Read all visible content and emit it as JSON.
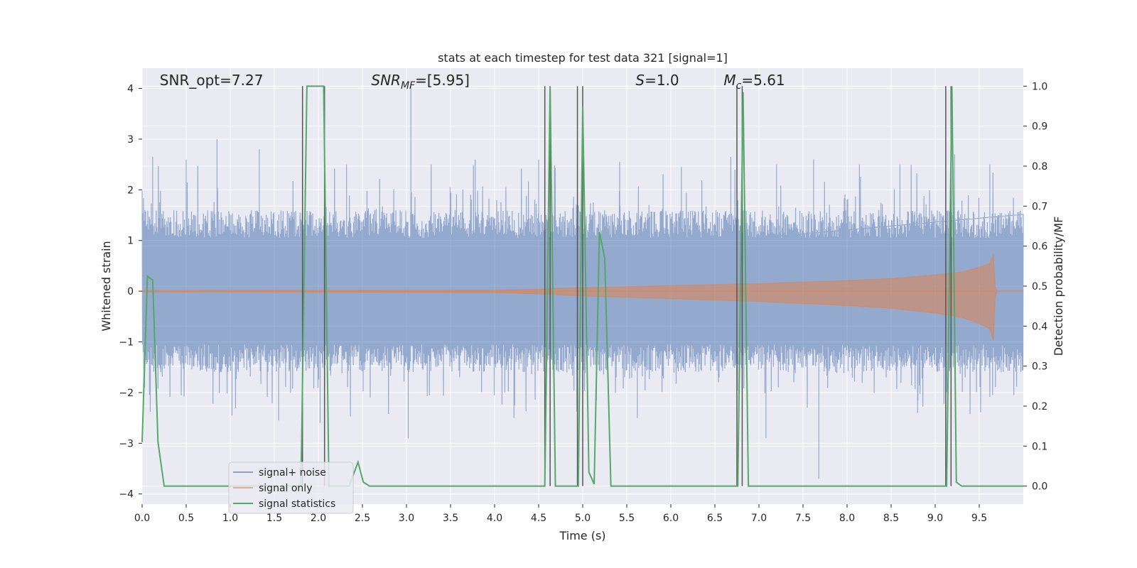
{
  "chart_data": {
    "type": "line",
    "title": "stats at each timestep for test data 321 [signal=1]",
    "xlabel": "Time (s)",
    "ylabel": "Whitened strain",
    "y2label": "Detection probability/MF",
    "xlim": [
      0.0,
      10.0
    ],
    "ylim": [
      -4.2,
      4.4
    ],
    "y2lim": [
      -0.045,
      1.045
    ],
    "x_ticks": [
      0.0,
      0.5,
      1.0,
      1.5,
      2.0,
      2.5,
      3.0,
      3.5,
      4.0,
      4.5,
      5.0,
      5.5,
      6.0,
      6.5,
      7.0,
      7.5,
      8.0,
      8.5,
      9.0,
      9.5
    ],
    "y_ticks": [
      -4,
      -3,
      -2,
      -1,
      0,
      1,
      2,
      3,
      4
    ],
    "y2_ticks": [
      0.0,
      0.1,
      0.2,
      0.3,
      0.4,
      0.5,
      0.6,
      0.7,
      0.8,
      0.9,
      1.0
    ],
    "grid": true,
    "annotations": [
      {
        "id": "snr-opt",
        "text": "SNR_opt=7.27",
        "x": 0.2,
        "y": 4.15
      },
      {
        "id": "snr-mf",
        "base": "SNR",
        "sub": "MF",
        "rest": "=[5.95]",
        "x": 2.6,
        "y": 4.15
      },
      {
        "id": "s-value",
        "base": "S",
        "sub": "",
        "rest": "=1.0",
        "x": 5.6,
        "y": 4.15
      },
      {
        "id": "mc-value",
        "base": "M",
        "sub": "c",
        "rest": "=5.61",
        "x": 6.6,
        "y": 4.15
      }
    ],
    "legend": {
      "position": "lower-left",
      "entries": [
        {
          "label": "signal+ noise",
          "color": "#4c72b0"
        },
        {
          "label": "signal only",
          "color": "#dd8452"
        },
        {
          "label": "signal statistics",
          "color": "#55a868"
        }
      ]
    },
    "noise_series": {
      "name": "signal+ noise",
      "color": "#4c72b0",
      "peak_spikes": [
        [
          0.12,
          2.65
        ],
        [
          0.5,
          2.6
        ],
        [
          0.85,
          3.0
        ],
        [
          1.33,
          2.8
        ],
        [
          2.32,
          2.5
        ],
        [
          3.05,
          4.05
        ],
        [
          3.78,
          2.6
        ],
        [
          4.5,
          2.6
        ],
        [
          5.42,
          2.55
        ],
        [
          6.12,
          2.45
        ],
        [
          6.68,
          2.65
        ],
        [
          7.2,
          2.5
        ],
        [
          7.62,
          2.6
        ],
        [
          8.14,
          2.5
        ],
        [
          8.6,
          2.5
        ],
        [
          9.22,
          2.7
        ],
        [
          9.62,
          2.5
        ],
        [
          1.02,
          -2.45
        ],
        [
          1.55,
          -2.55
        ],
        [
          2.02,
          -2.6
        ],
        [
          3.02,
          -2.9
        ],
        [
          4.22,
          -2.5
        ],
        [
          5.62,
          -2.5
        ],
        [
          7.08,
          -2.9
        ],
        [
          7.68,
          -3.7
        ],
        [
          8.8,
          -2.4
        ]
      ]
    },
    "signal_series": {
      "name": "signal only",
      "color": "#dd8452",
      "envelope": [
        [
          0.0,
          0.01
        ],
        [
          4.0,
          0.02
        ],
        [
          4.5,
          0.04
        ],
        [
          5.0,
          0.07
        ],
        [
          6.0,
          0.11
        ],
        [
          7.0,
          0.15
        ],
        [
          8.0,
          0.21
        ],
        [
          8.5,
          0.25
        ],
        [
          9.0,
          0.32
        ],
        [
          9.3,
          0.38
        ],
        [
          9.5,
          0.47
        ],
        [
          9.62,
          0.55
        ],
        [
          9.66,
          0.72
        ],
        [
          9.68,
          0.1
        ],
        [
          9.7,
          0.0
        ],
        [
          10.0,
          0.0
        ]
      ]
    },
    "stat_series": {
      "name": "signal statistics",
      "color": "#55a868",
      "points": [
        [
          0.0,
          0.11
        ],
        [
          0.06,
          0.525
        ],
        [
          0.12,
          0.515
        ],
        [
          0.18,
          0.11
        ],
        [
          0.25,
          0.0
        ],
        [
          1.8,
          0.0
        ],
        [
          1.81,
          0.11
        ],
        [
          1.87,
          1.0
        ],
        [
          2.06,
          1.0
        ],
        [
          2.12,
          0.0
        ],
        [
          2.35,
          0.0
        ],
        [
          2.45,
          0.06
        ],
        [
          2.51,
          0.01
        ],
        [
          2.58,
          0.0
        ],
        [
          4.57,
          0.0
        ],
        [
          4.63,
          1.0
        ],
        [
          4.69,
          0.0
        ],
        [
          4.95,
          0.0
        ],
        [
          5.0,
          0.95
        ],
        [
          5.07,
          0.035
        ],
        [
          5.13,
          0.005
        ],
        [
          5.19,
          0.635
        ],
        [
          5.25,
          0.57
        ],
        [
          5.32,
          0.0
        ],
        [
          6.76,
          0.0
        ],
        [
          6.82,
          0.985
        ],
        [
          6.88,
          0.0
        ],
        [
          9.13,
          0.0
        ],
        [
          9.19,
          1.0
        ],
        [
          9.24,
          0.01
        ],
        [
          9.3,
          0.0
        ],
        [
          10.0,
          0.0
        ]
      ]
    },
    "vertical_lines": [
      1.82,
      2.07,
      4.57,
      4.63,
      4.94,
      5.0,
      6.75,
      6.81,
      9.12,
      9.18
    ]
  }
}
